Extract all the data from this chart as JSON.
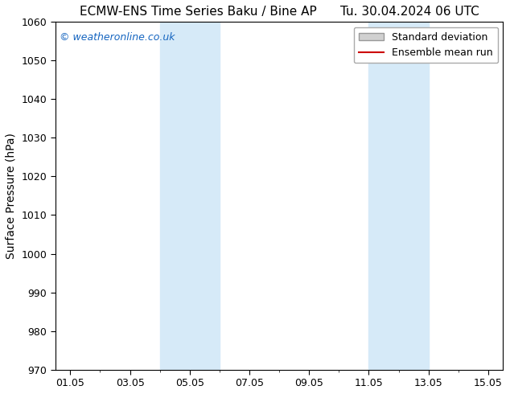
{
  "title_left": "ECMW-ENS Time Series Baku / Bine AP",
  "title_right": "Tu. 30.04.2024 06 UTC",
  "ylabel": "Surface Pressure (hPa)",
  "ylim": [
    970,
    1060
  ],
  "yticks": [
    970,
    980,
    990,
    1000,
    1010,
    1020,
    1030,
    1040,
    1050,
    1060
  ],
  "xtick_labels": [
    "01.05",
    "03.05",
    "05.05",
    "07.05",
    "09.05",
    "11.05",
    "13.05",
    "15.05"
  ],
  "xtick_positions": [
    1,
    3,
    5,
    7,
    9,
    11,
    13,
    15
  ],
  "xlim": [
    0.5,
    15.5
  ],
  "shaded_bands": [
    {
      "x_start": 4.0,
      "x_end": 6.0
    },
    {
      "x_start": 11.0,
      "x_end": 13.0
    }
  ],
  "shade_color": "#d6eaf8",
  "background_color": "#ffffff",
  "plot_bg_color": "#ffffff",
  "watermark_text": "© weatheronline.co.uk",
  "watermark_color": "#1565c0",
  "legend_std_label": "Standard deviation",
  "legend_mean_label": "Ensemble mean run",
  "legend_std_facecolor": "#d0d0d0",
  "legend_std_edgecolor": "#999999",
  "legend_mean_color": "#cc0000",
  "title_fontsize": 11,
  "ylabel_fontsize": 10,
  "tick_fontsize": 9,
  "watermark_fontsize": 9,
  "legend_fontsize": 9
}
